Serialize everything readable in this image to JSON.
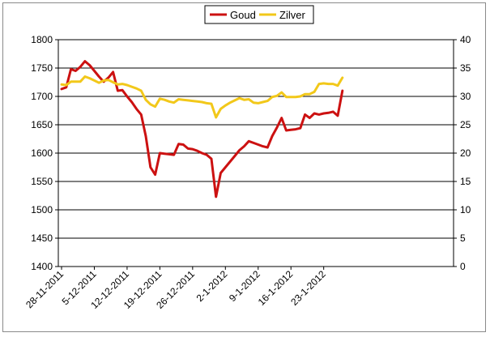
{
  "chart_data": {
    "type": "line",
    "title": "",
    "xlabel": "",
    "ylabel": "",
    "x_tick_labels": [
      "28-11-2011",
      "5-12-2011",
      "12-12-2011",
      "19-12-2011",
      "26-12-2011",
      "2-1-2012",
      "9-1-2012",
      "16-1-2012",
      "23-1-2012"
    ],
    "y_left": {
      "min": 1400,
      "max": 1800,
      "step": 50,
      "ticks": [
        "1400",
        "1450",
        "1500",
        "1550",
        "1600",
        "1650",
        "1700",
        "1750",
        "1800"
      ]
    },
    "y_right": {
      "min": 0,
      "max": 40,
      "step": 5,
      "ticks": [
        "0",
        "5",
        "10",
        "15",
        "20",
        "25",
        "30",
        "35",
        "40"
      ]
    },
    "grid": "horizontal",
    "legend_position": "top-center",
    "series": [
      {
        "name": "Goud",
        "axis": "left",
        "color": "#cc1111",
        "points": [
          [
            "2011-11-28",
            1713
          ],
          [
            "2011-11-29",
            1716
          ],
          [
            "2011-11-30",
            1748
          ],
          [
            "2011-12-01",
            1745
          ],
          [
            "2011-12-02",
            1752
          ],
          [
            "2011-12-03",
            1762
          ],
          [
            "2011-12-04",
            1755
          ],
          [
            "2011-12-05",
            1745
          ],
          [
            "2011-12-06",
            1735
          ],
          [
            "2011-12-07",
            1726
          ],
          [
            "2011-12-08",
            1733
          ],
          [
            "2011-12-09",
            1743
          ],
          [
            "2011-12-10",
            1710
          ],
          [
            "2011-12-11",
            1711
          ],
          [
            "2011-12-12",
            1700
          ],
          [
            "2011-12-13",
            1690
          ],
          [
            "2011-12-14",
            1678
          ],
          [
            "2011-12-15",
            1668
          ],
          [
            "2011-12-16",
            1630
          ],
          [
            "2011-12-17",
            1575
          ],
          [
            "2011-12-18",
            1562
          ],
          [
            "2011-12-19",
            1600
          ],
          [
            "2011-12-20",
            1599
          ],
          [
            "2011-12-21",
            1598
          ],
          [
            "2011-12-22",
            1597
          ],
          [
            "2011-12-23",
            1616
          ],
          [
            "2011-12-24",
            1615
          ],
          [
            "2011-12-25",
            1608
          ],
          [
            "2011-12-26",
            1607
          ],
          [
            "2011-12-27",
            1604
          ],
          [
            "2011-12-28",
            1600
          ],
          [
            "2011-12-29",
            1597
          ],
          [
            "2011-12-30",
            1590
          ],
          [
            "2011-12-31",
            1523
          ],
          [
            "2012-01-01",
            1565
          ],
          [
            "2012-01-02",
            1575
          ],
          [
            "2012-01-03",
            1585
          ],
          [
            "2012-01-04",
            1595
          ],
          [
            "2012-01-05",
            1605
          ],
          [
            "2012-01-06",
            1612
          ],
          [
            "2012-01-07",
            1621
          ],
          [
            "2012-01-08",
            1618
          ],
          [
            "2012-01-09",
            1615
          ],
          [
            "2012-01-10",
            1612
          ],
          [
            "2012-01-11",
            1610
          ],
          [
            "2012-01-12",
            1630
          ],
          [
            "2012-01-13",
            1645
          ],
          [
            "2012-01-14",
            1662
          ],
          [
            "2012-01-15",
            1640
          ],
          [
            "2012-01-16",
            1641
          ],
          [
            "2012-01-17",
            1642
          ],
          [
            "2012-01-18",
            1644
          ],
          [
            "2012-01-19",
            1668
          ],
          [
            "2012-01-20",
            1662
          ],
          [
            "2012-01-21",
            1670
          ],
          [
            "2012-01-22",
            1668
          ],
          [
            "2012-01-23",
            1670
          ],
          [
            "2012-01-24",
            1671
          ],
          [
            "2012-01-25",
            1673
          ],
          [
            "2012-01-26",
            1666
          ],
          [
            "2012-01-27",
            1710
          ]
        ]
      },
      {
        "name": "Zilver",
        "axis": "right",
        "color": "#f2c81a",
        "points": [
          [
            "2011-11-28",
            32.1
          ],
          [
            "2011-11-29",
            32.0
          ],
          [
            "2011-11-30",
            32.6
          ],
          [
            "2011-12-01",
            32.6
          ],
          [
            "2011-12-02",
            32.6
          ],
          [
            "2011-12-03",
            33.5
          ],
          [
            "2011-12-04",
            33.2
          ],
          [
            "2011-12-05",
            32.8
          ],
          [
            "2011-12-06",
            32.4
          ],
          [
            "2011-12-07",
            32.8
          ],
          [
            "2011-12-08",
            32.9
          ],
          [
            "2011-12-09",
            32.5
          ],
          [
            "2011-12-10",
            32.1
          ],
          [
            "2011-12-11",
            32.2
          ],
          [
            "2011-12-12",
            32.0
          ],
          [
            "2011-12-13",
            31.7
          ],
          [
            "2011-12-14",
            31.4
          ],
          [
            "2011-12-15",
            31.0
          ],
          [
            "2011-12-16",
            29.4
          ],
          [
            "2011-12-17",
            28.6
          ],
          [
            "2011-12-18",
            28.2
          ],
          [
            "2011-12-19",
            29.6
          ],
          [
            "2011-12-20",
            29.4
          ],
          [
            "2011-12-21",
            29.1
          ],
          [
            "2011-12-22",
            28.9
          ],
          [
            "2011-12-23",
            29.5
          ],
          [
            "2011-12-24",
            29.4
          ],
          [
            "2011-12-25",
            29.3
          ],
          [
            "2011-12-26",
            29.2
          ],
          [
            "2011-12-27",
            29.1
          ],
          [
            "2011-12-28",
            29.0
          ],
          [
            "2011-12-29",
            28.8
          ],
          [
            "2011-12-30",
            28.7
          ],
          [
            "2011-12-31",
            26.3
          ],
          [
            "2012-01-01",
            27.8
          ],
          [
            "2012-01-02",
            28.4
          ],
          [
            "2012-01-03",
            28.9
          ],
          [
            "2012-01-04",
            29.3
          ],
          [
            "2012-01-05",
            29.7
          ],
          [
            "2012-01-06",
            29.4
          ],
          [
            "2012-01-07",
            29.5
          ],
          [
            "2012-01-08",
            28.9
          ],
          [
            "2012-01-09",
            28.8
          ],
          [
            "2012-01-10",
            29.0
          ],
          [
            "2012-01-11",
            29.2
          ],
          [
            "2012-01-12",
            29.9
          ],
          [
            "2012-01-13",
            30.1
          ],
          [
            "2012-01-14",
            30.7
          ],
          [
            "2012-01-15",
            29.9
          ],
          [
            "2012-01-16",
            29.9
          ],
          [
            "2012-01-17",
            29.9
          ],
          [
            "2012-01-18",
            30.0
          ],
          [
            "2012-01-19",
            30.4
          ],
          [
            "2012-01-20",
            30.4
          ],
          [
            "2012-01-21",
            30.8
          ],
          [
            "2012-01-22",
            32.2
          ],
          [
            "2012-01-23",
            32.3
          ],
          [
            "2012-01-24",
            32.2
          ],
          [
            "2012-01-25",
            32.2
          ],
          [
            "2012-01-26",
            31.9
          ],
          [
            "2012-01-27",
            33.3
          ]
        ]
      }
    ]
  }
}
